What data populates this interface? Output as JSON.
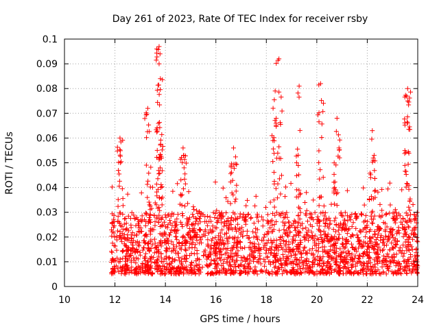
{
  "chart_data": {
    "type": "scatter",
    "title": "Day 261 of 2023, Rate Of TEC Index for receiver rsby",
    "xlabel": "GPS time / hours",
    "ylabel": "ROTI / TECUs",
    "xlim": [
      10,
      24
    ],
    "ylim": [
      0,
      0.1
    ],
    "x_ticks": [
      "10",
      "12",
      "14",
      "16",
      "18",
      "20",
      "22",
      "24"
    ],
    "y_ticks": [
      "0",
      "0.01",
      "0.02",
      "0.03",
      "0.04",
      "0.05",
      "0.06",
      "0.07",
      "0.08",
      "0.09",
      "0.1"
    ],
    "grid": true,
    "marker": "+",
    "series": [
      {
        "name": "rsby",
        "color": "#ff0000",
        "data_range_x": [
          11.85,
          24.0
        ],
        "dense_band": [
          0.005,
          0.03
        ],
        "peaks": [
          {
            "x": 13.75,
            "y": 0.097
          },
          {
            "x": 13.75,
            "y": 0.09
          },
          {
            "x": 13.8,
            "y": 0.084
          },
          {
            "x": 13.3,
            "y": 0.072
          },
          {
            "x": 12.2,
            "y": 0.06
          },
          {
            "x": 14.7,
            "y": 0.056
          },
          {
            "x": 16.7,
            "y": 0.056
          },
          {
            "x": 18.5,
            "y": 0.092
          },
          {
            "x": 18.35,
            "y": 0.079
          },
          {
            "x": 19.3,
            "y": 0.081
          },
          {
            "x": 20.15,
            "y": 0.082
          },
          {
            "x": 20.8,
            "y": 0.068
          },
          {
            "x": 22.2,
            "y": 0.063
          },
          {
            "x": 23.6,
            "y": 0.08
          },
          {
            "x": 23.6,
            "y": 0.075
          }
        ]
      }
    ]
  }
}
